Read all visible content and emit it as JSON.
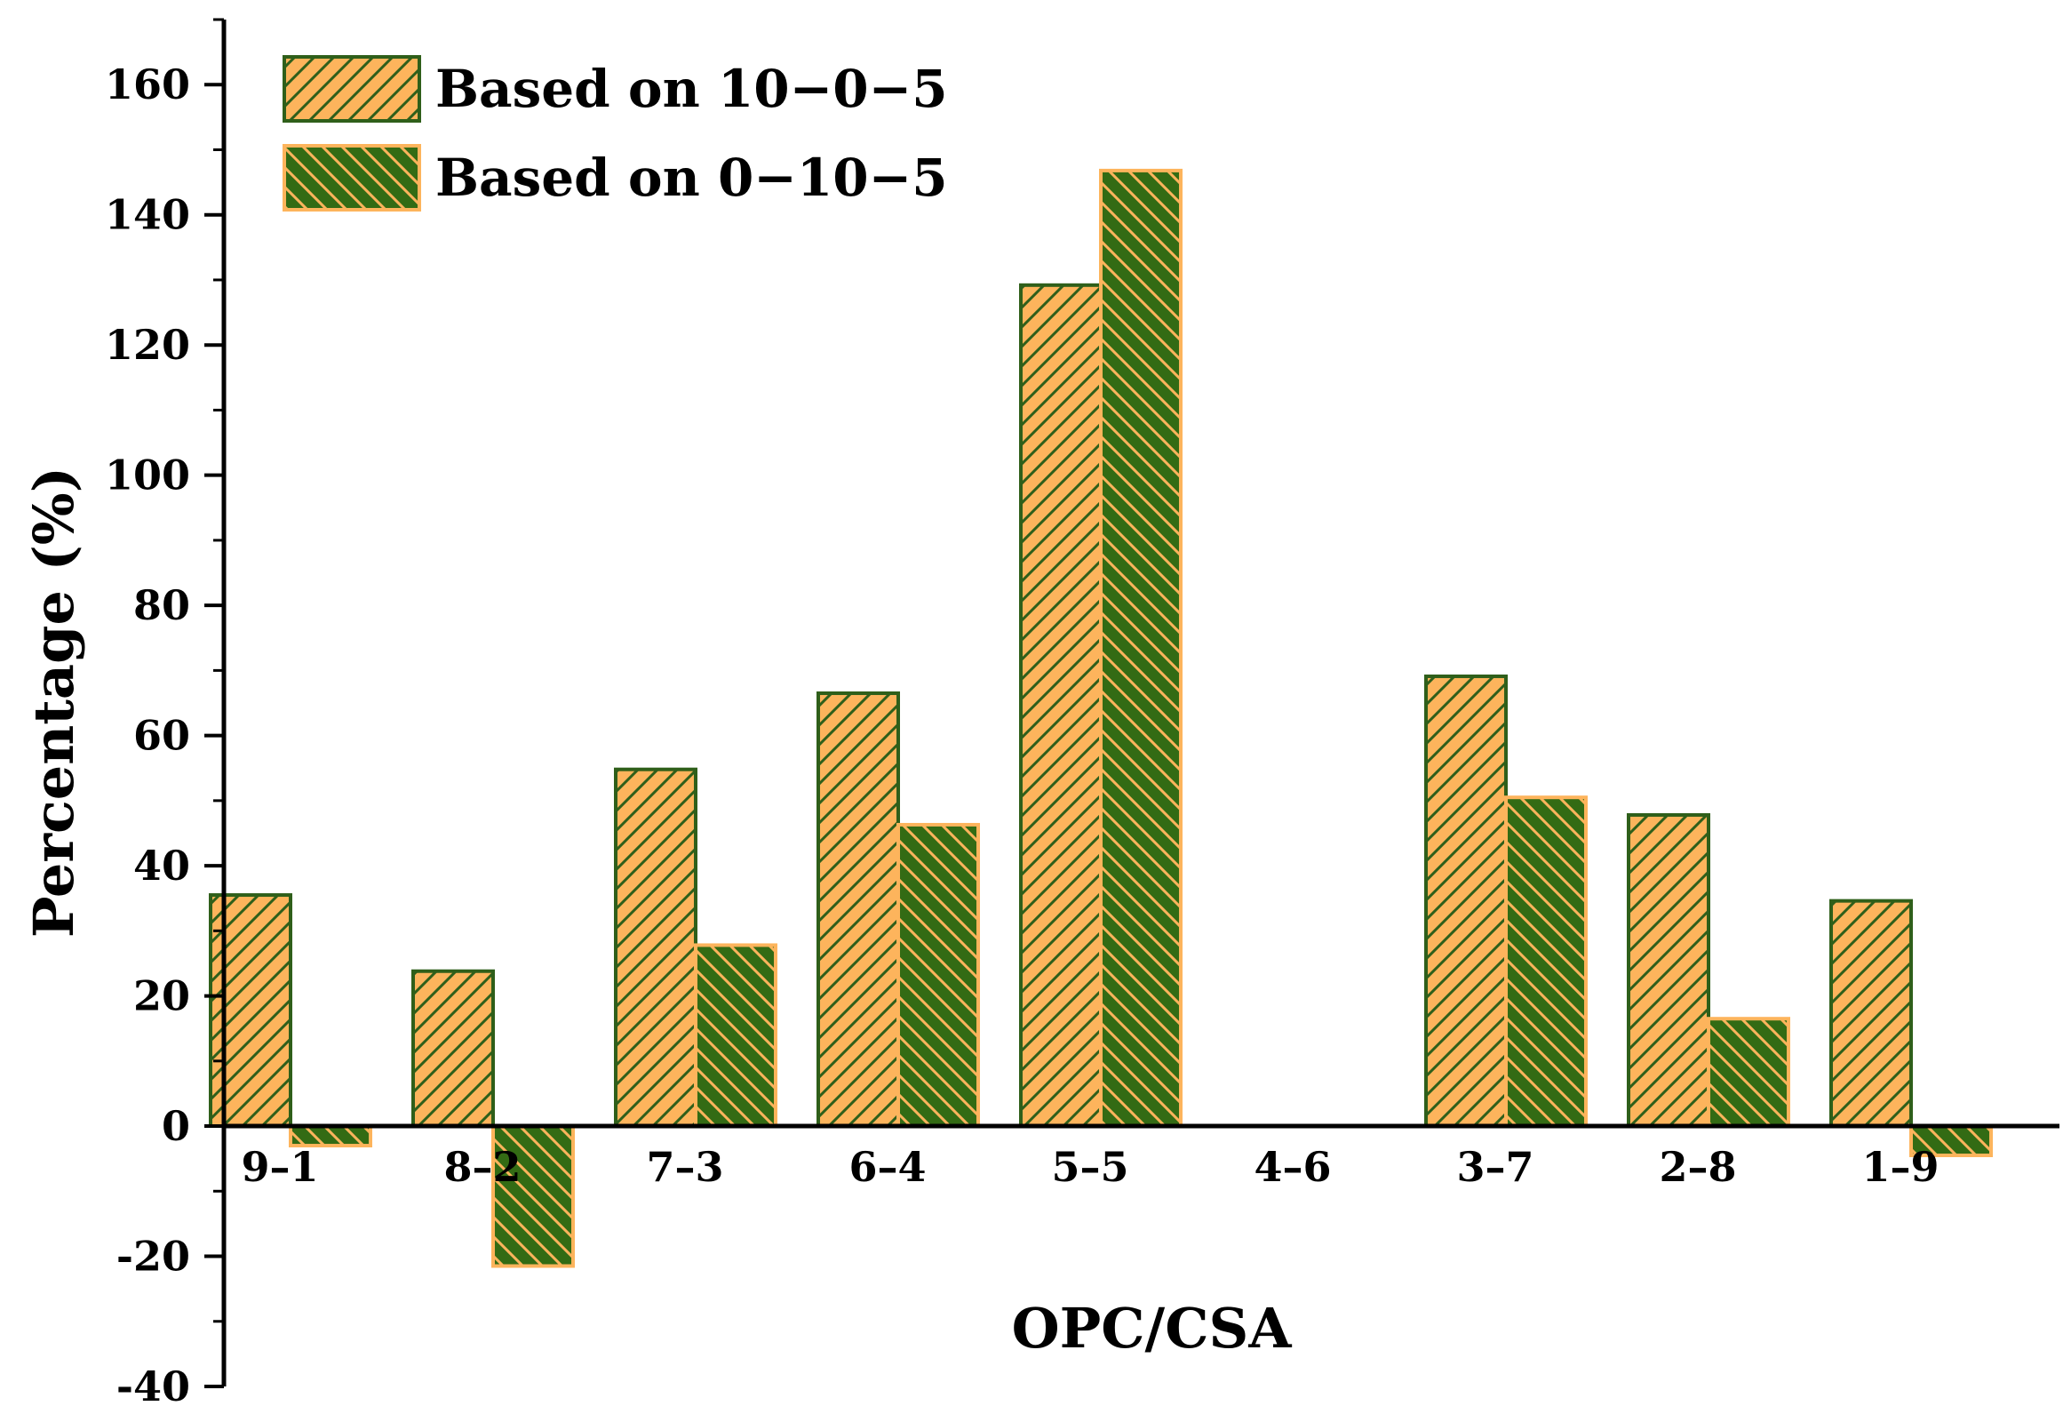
{
  "chart_data": {
    "type": "bar",
    "title": "",
    "xlabel": "OPC/CSA",
    "ylabel": "Percentage (%)",
    "ylim": [
      -40,
      170
    ],
    "yticks": [
      -40,
      -20,
      0,
      20,
      40,
      60,
      80,
      100,
      120,
      140,
      160
    ],
    "categories": [
      "9–1",
      "8–2",
      "7–3",
      "6–4",
      "5–5",
      "4–6",
      "3–7",
      "2–8",
      "1–9"
    ],
    "series": [
      {
        "name": "Based on 10−0−5",
        "values": [
          35.5,
          23.8,
          54.8,
          66.5,
          129.2,
          0,
          69.1,
          47.8,
          34.6
        ],
        "fill": "#FDB45C",
        "stroke": "#2F5F1A",
        "hatch": "#2F5F1A",
        "hatch_direction": "forward"
      },
      {
        "name": "Based on 0−10−5",
        "values": [
          -3,
          -21.5,
          27.8,
          46.3,
          146.8,
          0,
          50.5,
          16.5,
          -4.5
        ],
        "fill": "#336B14",
        "stroke": "#FDB45C",
        "hatch": "#FDB45C",
        "hatch_direction": "backward"
      }
    ],
    "grid": false,
    "legend_position": "top-left"
  }
}
